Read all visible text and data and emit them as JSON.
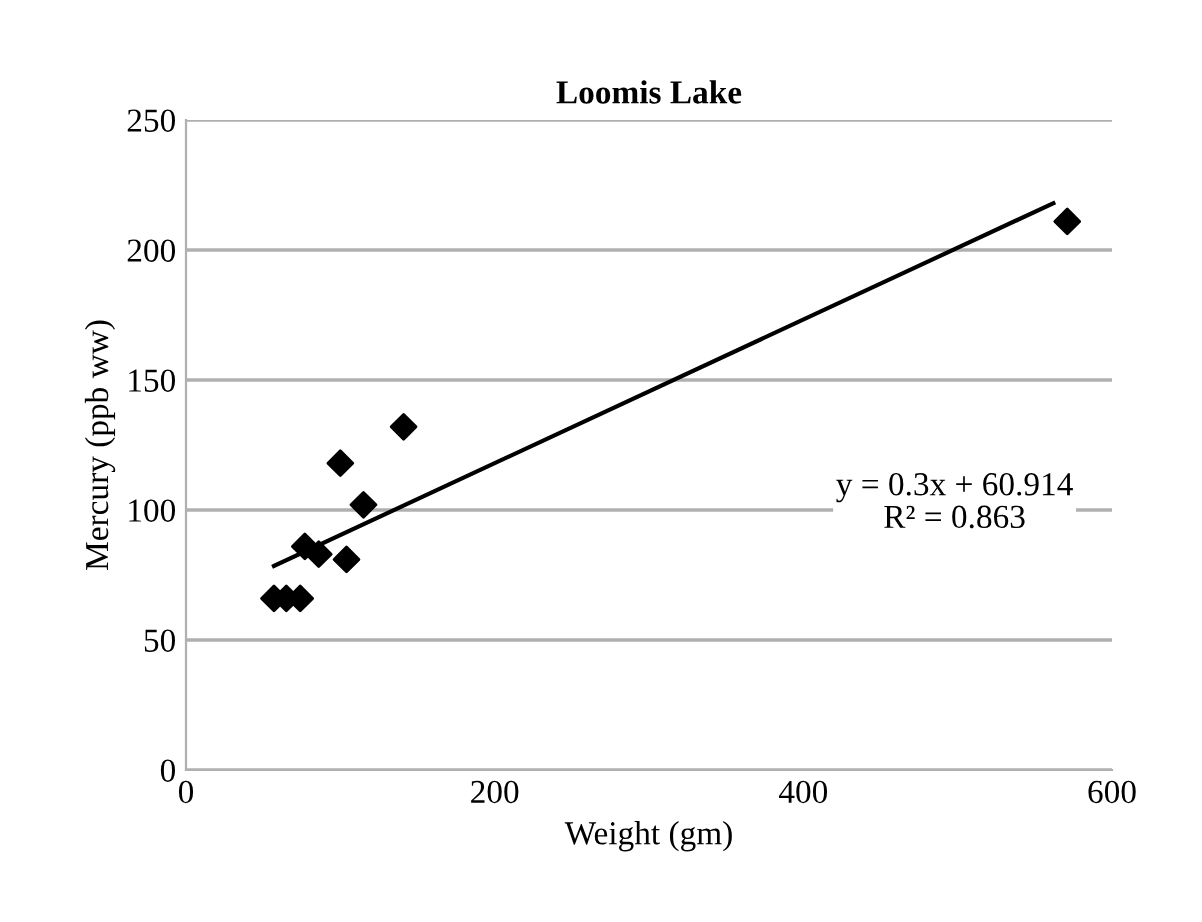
{
  "chart_data": {
    "type": "scatter",
    "title": "Loomis Lake",
    "xlabel": "Weight (gm)",
    "ylabel": "Mercury (ppb ww)",
    "series": [
      {
        "color": "#000000",
        "marker": "diamond",
        "x": [
          57,
          65,
          74,
          77,
          86,
          100,
          104,
          115,
          141,
          571
        ],
        "values": [
          66,
          66,
          66,
          86,
          83,
          118,
          81,
          102,
          132,
          211
        ]
      },
      {
        "type": "line",
        "color": "#000000",
        "x": [
          57,
          562
        ],
        "values": [
          78.5,
          218
        ]
      }
    ],
    "annotations": [
      "y = 0.3x + 60.914\nR² = 0.863"
    ],
    "xlim": [
      0,
      600
    ],
    "xticks": [
      0,
      200,
      400,
      600
    ],
    "ylim": [
      0,
      250
    ],
    "yticks": [
      0,
      50,
      100,
      150,
      200,
      250
    ],
    "grid": "y",
    "legend": false
  }
}
